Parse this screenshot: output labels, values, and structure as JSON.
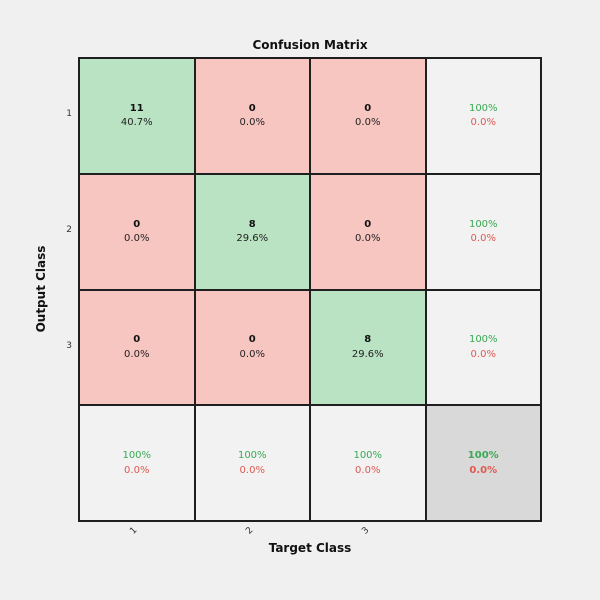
{
  "chart_data": {
    "type": "heatmap",
    "subtype": "confusion_matrix",
    "title": "Confusion Matrix",
    "xlabel": "Target Class",
    "ylabel": "Output Class",
    "classes": [
      "1",
      "2",
      "3"
    ],
    "matrix_counts": [
      [
        11,
        0,
        0
      ],
      [
        0,
        8,
        0
      ],
      [
        0,
        0,
        8
      ]
    ],
    "matrix_percents": [
      [
        "40.7%",
        "0.0%",
        "0.0%"
      ],
      [
        "0.0%",
        "29.6%",
        "0.0%"
      ],
      [
        "0.0%",
        "0.0%",
        "29.6%"
      ]
    ],
    "row_summary": [
      [
        "100%",
        "0.0%"
      ],
      [
        "100%",
        "0.0%"
      ],
      [
        "100%",
        "0.0%"
      ]
    ],
    "col_summary": [
      [
        "100%",
        "0.0%"
      ],
      [
        "100%",
        "0.0%"
      ],
      [
        "100%",
        "0.0%"
      ]
    ],
    "overall_summary": [
      "100%",
      "0.0%"
    ],
    "legend_position": "none",
    "grid": true
  },
  "colors": {
    "background": "#f0f0f0",
    "correct_cell": "#bae3c3",
    "incorrect_cell": "#f8c6c1",
    "summary_cell": "#f2f2f2",
    "total_cell": "#d9d9d9",
    "grid_line": "#1f1f1f",
    "positive_text": "#3aa953",
    "negative_text": "#de5a52"
  },
  "cells": [
    {
      "line1": "11",
      "line2": "40.7%"
    },
    {
      "line1": "0",
      "line2": "0.0%"
    },
    {
      "line1": "0",
      "line2": "0.0%"
    },
    {
      "line1": "100%",
      "line2": "0.0%"
    },
    {
      "line1": "0",
      "line2": "0.0%"
    },
    {
      "line1": "8",
      "line2": "29.6%"
    },
    {
      "line1": "0",
      "line2": "0.0%"
    },
    {
      "line1": "100%",
      "line2": "0.0%"
    },
    {
      "line1": "0",
      "line2": "0.0%"
    },
    {
      "line1": "0",
      "line2": "0.0%"
    },
    {
      "line1": "8",
      "line2": "29.6%"
    },
    {
      "line1": "100%",
      "line2": "0.0%"
    },
    {
      "line1": "100%",
      "line2": "0.0%"
    },
    {
      "line1": "100%",
      "line2": "0.0%"
    },
    {
      "line1": "100%",
      "line2": "0.0%"
    },
    {
      "line1": "100%",
      "line2": "0.0%"
    }
  ]
}
